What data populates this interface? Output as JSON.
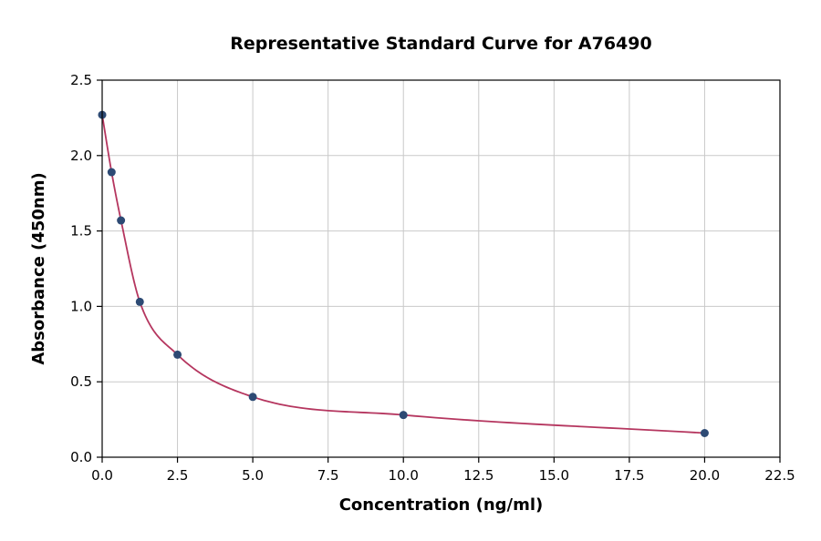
{
  "figure": {
    "background": "#ffffff"
  },
  "chart_data": {
    "type": "scatter",
    "title": "Representative Standard Curve for A76490",
    "xlabel": "Concentration (ng/ml)",
    "ylabel": "Absorbance (450nm)",
    "xlim": [
      0,
      22.5
    ],
    "ylim": [
      0,
      2.5
    ],
    "xticks": [
      0,
      2.5,
      5,
      7.5,
      10,
      12.5,
      15,
      17.5,
      20,
      22.5
    ],
    "xtick_labels": [
      "0.0",
      "2.5",
      "5.0",
      "7.5",
      "10.0",
      "12.5",
      "15.0",
      "17.5",
      "20.0",
      "22.5"
    ],
    "yticks": [
      0,
      0.5,
      1,
      1.5,
      2,
      2.5
    ],
    "ytick_labels": [
      "0.0",
      "0.5",
      "1.0",
      "1.5",
      "2.0",
      "2.5"
    ],
    "grid": true,
    "grid_color": "#c9c9c9",
    "spine_color": "#000000",
    "legend": "none",
    "series": [
      {
        "name": "fit-curve",
        "type": "spline",
        "color": "#b5365f",
        "stroke_width": 1.8,
        "x": [
          0,
          0.3125,
          0.625,
          1.25,
          2.5,
          5,
          10,
          20
        ],
        "y": [
          2.27,
          1.89,
          1.57,
          1.03,
          0.68,
          0.4,
          0.28,
          0.16
        ]
      },
      {
        "name": "standards",
        "type": "scatter",
        "color": "#2d4a74",
        "radius": 4.5,
        "x": [
          0,
          0.3125,
          0.625,
          1.25,
          2.5,
          5,
          10,
          20
        ],
        "y": [
          2.27,
          1.89,
          1.57,
          1.03,
          0.68,
          0.4,
          0.28,
          0.16
        ]
      }
    ]
  }
}
